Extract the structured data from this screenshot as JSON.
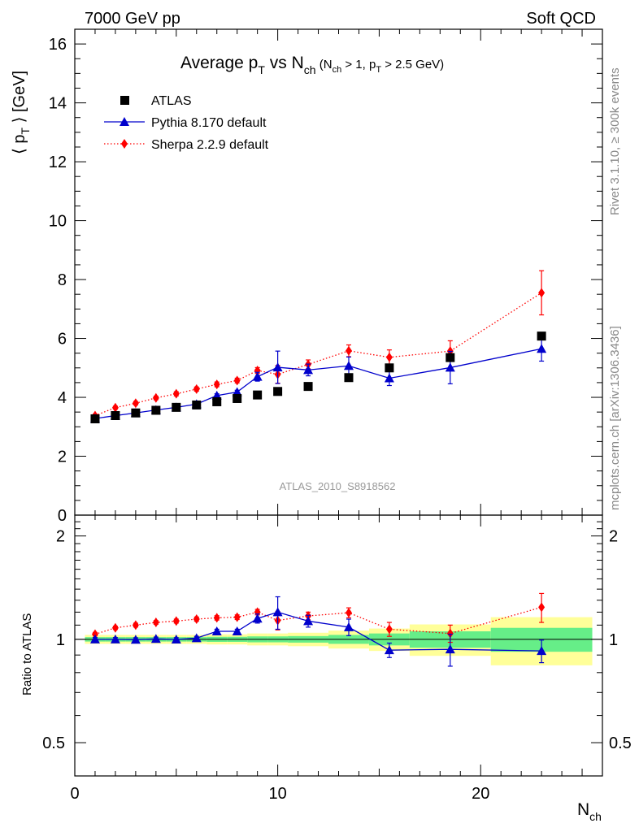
{
  "header": {
    "left": "7000 GeV pp",
    "right": "Soft QCD"
  },
  "side_labels": {
    "rivet": "Rivet 3.1.10, ≥ 300k events",
    "mcplots": "mcplots.cern.ch [arXiv:1306.3436]"
  },
  "watermark": "ATLAS_2010_S8918562",
  "chart_data": [
    {
      "type": "scatter",
      "panel": "main",
      "title": {
        "main_a": "Average p",
        "main_a_sub": "T",
        "main_b": " vs N",
        "main_b_sub": "ch",
        "cond_a": " (N",
        "cond_a_sub": "ch",
        "cond_b": " > 1, p",
        "cond_b_sub": "T",
        "cond_c": " > 2.5 GeV)"
      },
      "ylabel": {
        "pre": "⟨ p",
        "sub": "T",
        "post": " ⟩  [GeV]"
      },
      "xlim": [
        0,
        26
      ],
      "ylim": [
        0,
        16.5
      ],
      "yticks": [
        "0",
        "2",
        "4",
        "6",
        "8",
        "10",
        "12",
        "14",
        "16"
      ],
      "legend_placement": "top-left",
      "series": [
        {
          "name": "ATLAS",
          "color": "#000000",
          "marker": "square",
          "line": "none",
          "x": [
            1,
            2,
            3,
            4,
            5,
            6,
            7,
            8,
            9,
            10,
            11.5,
            13.5,
            15.5,
            18.5,
            23
          ],
          "y": [
            3.27,
            3.38,
            3.47,
            3.56,
            3.66,
            3.74,
            3.85,
            3.96,
            4.08,
            4.2,
            4.37,
            4.67,
            5.0,
            5.35,
            6.08
          ],
          "err": [
            0.05,
            0.05,
            0.05,
            0.05,
            0.05,
            0.05,
            0.05,
            0.05,
            0.05,
            0.05,
            0.05,
            0.05,
            0.05,
            0.05,
            0.05
          ]
        },
        {
          "name": "Pythia 8.170 default",
          "color": "#0000cc",
          "marker": "triangle",
          "line": "solid",
          "x": [
            1,
            2,
            3,
            4,
            5,
            6,
            7,
            8,
            9,
            10,
            11.5,
            13.5,
            15.5,
            18.5,
            23
          ],
          "y": [
            3.28,
            3.38,
            3.47,
            3.57,
            3.66,
            3.77,
            4.06,
            4.18,
            4.7,
            5.02,
            4.93,
            5.07,
            4.65,
            5.01,
            5.65
          ],
          "err": [
            0.05,
            0.05,
            0.05,
            0.05,
            0.05,
            0.05,
            0.06,
            0.06,
            0.15,
            0.55,
            0.2,
            0.3,
            0.25,
            0.55,
            0.42
          ]
        },
        {
          "name": "Sherpa 2.2.9 default",
          "color": "#ff0000",
          "marker": "diamond",
          "line": "dotted",
          "x": [
            1,
            2,
            3,
            4,
            5,
            6,
            7,
            8,
            9,
            10,
            11.5,
            13.5,
            15.5,
            18.5,
            23
          ],
          "y": [
            3.38,
            3.65,
            3.8,
            3.98,
            4.12,
            4.28,
            4.44,
            4.57,
            4.91,
            4.78,
            5.12,
            5.58,
            5.36,
            5.57,
            7.55
          ],
          "err": [
            0.05,
            0.05,
            0.06,
            0.06,
            0.07,
            0.07,
            0.08,
            0.08,
            0.1,
            0.3,
            0.15,
            0.2,
            0.25,
            0.35,
            0.75
          ]
        }
      ]
    },
    {
      "type": "scatter",
      "panel": "ratio",
      "ylabel": "Ratio to ATLAS",
      "xlabel": {
        "base": "N",
        "sub": "ch"
      },
      "xlim": [
        0,
        26
      ],
      "ylim": [
        0.4,
        2.3
      ],
      "log_y": true,
      "yticks": [
        "0.5",
        "1",
        "2"
      ],
      "xticks": [
        "0",
        "10",
        "20"
      ],
      "bands": {
        "colors": {
          "inner": "#66ee88",
          "outer": "#ffff99"
        },
        "bins": [
          {
            "x0": 0.5,
            "x1": 1.5,
            "inner": [
              0.985,
              1.015
            ],
            "outer": [
              0.97,
              1.03
            ]
          },
          {
            "x0": 1.5,
            "x1": 2.5,
            "inner": [
              0.985,
              1.015
            ],
            "outer": [
              0.97,
              1.03
            ]
          },
          {
            "x0": 2.5,
            "x1": 3.5,
            "inner": [
              0.985,
              1.015
            ],
            "outer": [
              0.97,
              1.03
            ]
          },
          {
            "x0": 3.5,
            "x1": 4.5,
            "inner": [
              0.985,
              1.015
            ],
            "outer": [
              0.97,
              1.03
            ]
          },
          {
            "x0": 4.5,
            "x1": 5.5,
            "inner": [
              0.985,
              1.015
            ],
            "outer": [
              0.97,
              1.03
            ]
          },
          {
            "x0": 5.5,
            "x1": 6.5,
            "inner": [
              0.985,
              1.015
            ],
            "outer": [
              0.97,
              1.03
            ]
          },
          {
            "x0": 6.5,
            "x1": 7.5,
            "inner": [
              0.983,
              1.017
            ],
            "outer": [
              0.966,
              1.034
            ]
          },
          {
            "x0": 7.5,
            "x1": 8.5,
            "inner": [
              0.983,
              1.017
            ],
            "outer": [
              0.966,
              1.034
            ]
          },
          {
            "x0": 8.5,
            "x1": 9.5,
            "inner": [
              0.98,
              1.02
            ],
            "outer": [
              0.96,
              1.04
            ]
          },
          {
            "x0": 9.5,
            "x1": 10.5,
            "inner": [
              0.98,
              1.02
            ],
            "outer": [
              0.96,
              1.04
            ]
          },
          {
            "x0": 10.5,
            "x1": 12.5,
            "inner": [
              0.978,
              1.022
            ],
            "outer": [
              0.955,
              1.045
            ]
          },
          {
            "x0": 12.5,
            "x1": 14.5,
            "inner": [
              0.97,
              1.03
            ],
            "outer": [
              0.94,
              1.06
            ]
          },
          {
            "x0": 14.5,
            "x1": 16.5,
            "inner": [
              0.96,
              1.04
            ],
            "outer": [
              0.925,
              1.075
            ]
          },
          {
            "x0": 16.5,
            "x1": 20.5,
            "inner": [
              0.945,
              1.055
            ],
            "outer": [
              0.895,
              1.105
            ]
          },
          {
            "x0": 20.5,
            "x1": 25.5,
            "inner": [
              0.92,
              1.08
            ],
            "outer": [
              0.84,
              1.16
            ]
          }
        ]
      },
      "series": [
        {
          "name": "Pythia 8.170 default",
          "color": "#0000cc",
          "marker": "triangle",
          "line": "solid",
          "x": [
            1,
            2,
            3,
            4,
            5,
            6,
            7,
            8,
            9,
            10,
            11.5,
            13.5,
            15.5,
            18.5,
            23
          ],
          "y": [
            1.0,
            1.0,
            0.998,
            1.003,
            0.999,
            1.008,
            1.055,
            1.055,
            1.15,
            1.2,
            1.13,
            1.085,
            0.93,
            0.935,
            0.925
          ],
          "err": [
            0.012,
            0.012,
            0.012,
            0.012,
            0.012,
            0.012,
            0.015,
            0.015,
            0.035,
            0.13,
            0.045,
            0.06,
            0.045,
            0.1,
            0.07
          ]
        },
        {
          "name": "Sherpa 2.2.9 default",
          "color": "#ff0000",
          "marker": "diamond",
          "line": "dotted",
          "x": [
            1,
            2,
            3,
            4,
            5,
            6,
            7,
            8,
            9,
            10,
            11.5,
            13.5,
            15.5,
            18.5,
            23
          ],
          "y": [
            1.035,
            1.08,
            1.1,
            1.12,
            1.13,
            1.145,
            1.155,
            1.16,
            1.2,
            1.135,
            1.17,
            1.195,
            1.07,
            1.04,
            1.24
          ],
          "err": [
            0.012,
            0.012,
            0.014,
            0.014,
            0.015,
            0.016,
            0.017,
            0.018,
            0.022,
            0.07,
            0.03,
            0.04,
            0.05,
            0.06,
            0.12
          ]
        }
      ]
    }
  ]
}
